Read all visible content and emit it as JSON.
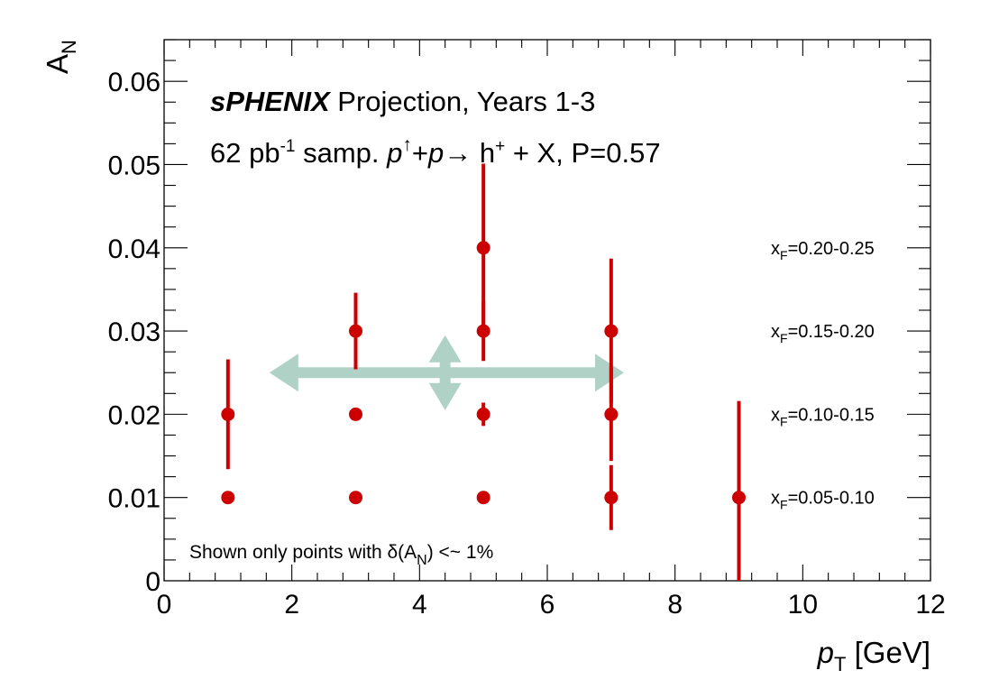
{
  "chart_data": {
    "type": "scatter",
    "title": {
      "brand": "sPHENIX",
      "rest": " Projection, Years 1-3"
    },
    "subtitle": {
      "lumi": "62 pb",
      "lumi_exp": "-1",
      "samp": " samp. ",
      "beam": "p",
      "arrow": "↑",
      "plus": "+",
      "target": "p",
      "to": "→",
      "hadron": " h",
      "hadron_sup": "+",
      "rest": " + X, P=0.57"
    },
    "xlabel": {
      "main": "p",
      "sub": "T",
      "unit": " [GeV]"
    },
    "ylabel": {
      "main": "A",
      "sub": "N"
    },
    "xlim": [
      0,
      12
    ],
    "ylim": [
      0,
      0.065
    ],
    "x_ticks": [
      {
        "v": 0,
        "label": "0"
      },
      {
        "v": 2,
        "label": "2"
      },
      {
        "v": 4,
        "label": "4"
      },
      {
        "v": 6,
        "label": "6"
      },
      {
        "v": 8,
        "label": "8"
      },
      {
        "v": 10,
        "label": "10"
      },
      {
        "v": 12,
        "label": "12"
      }
    ],
    "y_ticks": [
      {
        "v": 0,
        "label": "0"
      },
      {
        "v": 0.01,
        "label": "0.01"
      },
      {
        "v": 0.02,
        "label": "0.02"
      },
      {
        "v": 0.03,
        "label": "0.03"
      },
      {
        "v": 0.04,
        "label": "0.04"
      },
      {
        "v": 0.05,
        "label": "0.05"
      },
      {
        "v": 0.06,
        "label": "0.06"
      }
    ],
    "grid": false,
    "marker_color": "#cc0000",
    "series": [
      {
        "bin": {
          "pre": "x",
          "sub": "F",
          "post": "=0.05-0.10"
        },
        "y": 0.01,
        "points": [
          {
            "x": 1,
            "y": 0.01,
            "err": 0.0
          },
          {
            "x": 3,
            "y": 0.01,
            "err": 0.0
          },
          {
            "x": 5,
            "y": 0.01,
            "err": 0.0
          },
          {
            "x": 7,
            "y": 0.01,
            "err": 0.0039
          },
          {
            "x": 9,
            "y": 0.01,
            "err": 0.0116
          }
        ]
      },
      {
        "bin": {
          "pre": "x",
          "sub": "F",
          "post": "=0.10-0.15"
        },
        "y": 0.02,
        "points": [
          {
            "x": 1,
            "y": 0.02,
            "err": 0.0066
          },
          {
            "x": 3,
            "y": 0.02,
            "err": 0.0
          },
          {
            "x": 5,
            "y": 0.02,
            "err": 0.0014
          },
          {
            "x": 7,
            "y": 0.02,
            "err": 0.0056
          }
        ]
      },
      {
        "bin": {
          "pre": "x",
          "sub": "F",
          "post": "=0.15-0.20"
        },
        "y": 0.03,
        "points": [
          {
            "x": 3,
            "y": 0.03,
            "err": 0.0046
          },
          {
            "x": 5,
            "y": 0.03,
            "err": 0.0036
          },
          {
            "x": 7,
            "y": 0.03,
            "err": 0.0087
          }
        ]
      },
      {
        "bin": {
          "pre": "x",
          "sub": "F",
          "post": "=0.20-0.25"
        },
        "y": 0.04,
        "points": [
          {
            "x": 5,
            "y": 0.04,
            "err": 0.0101
          }
        ]
      }
    ],
    "arrow_color": "#b0d2c6",
    "arrows": {
      "horizontal": {
        "x_from": 1.65,
        "x_to": 7.2,
        "y": 0.025
      },
      "vertical": {
        "x": 4.4,
        "y_from": 0.0205,
        "y_to": 0.0295
      }
    },
    "note": {
      "pre": "Shown only points with δ(A",
      "sub": "N",
      "post": ") <~ 1%"
    }
  }
}
